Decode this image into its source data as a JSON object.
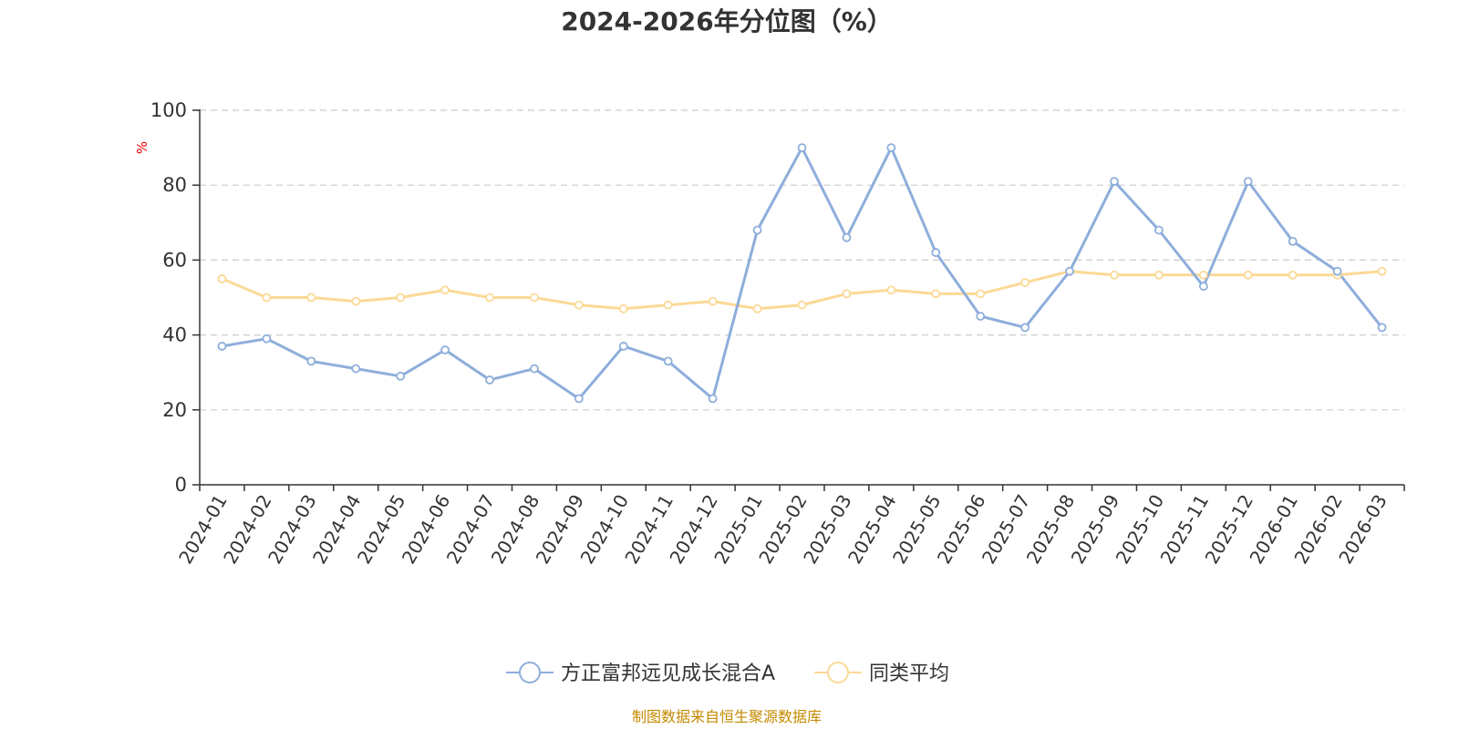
{
  "chart_data": {
    "type": "line",
    "title": "2024-2026年分位图（%）",
    "ylabel": "%",
    "xlabel": "",
    "ylim": [
      0,
      100
    ],
    "yticks": [
      0,
      20,
      40,
      60,
      80,
      100
    ],
    "grid": true,
    "legend_position": "bottom",
    "categories": [
      "2024-01",
      "2024-02",
      "2024-03",
      "2024-04",
      "2024-05",
      "2024-06",
      "2024-07",
      "2024-08",
      "2024-09",
      "2024-10",
      "2024-11",
      "2024-12",
      "2025-01",
      "2025-02",
      "2025-03",
      "2025-04",
      "2025-05",
      "2025-06",
      "2025-07",
      "2025-08",
      "2025-09",
      "2025-10",
      "2025-11",
      "2025-12",
      "2026-01",
      "2026-02",
      "2026-03"
    ],
    "series": [
      {
        "name": "方正富邦远见成长混合A",
        "color": "#8eaedb",
        "values": [
          37,
          39,
          33,
          31,
          29,
          36,
          28,
          31,
          23,
          37,
          33,
          23,
          68,
          90,
          66,
          90,
          62,
          45,
          42,
          57,
          81,
          68,
          53,
          81,
          65,
          57,
          42
        ]
      },
      {
        "name": "同类平均",
        "color": "#fbd996",
        "values": [
          55,
          50,
          50,
          49,
          50,
          52,
          50,
          50,
          48,
          47,
          48,
          49,
          47,
          48,
          51,
          52,
          51,
          51,
          54,
          57,
          56,
          56,
          56,
          56,
          56,
          56,
          57
        ]
      }
    ]
  },
  "colors": {
    "axis": "#333333",
    "grid": "#cccccc",
    "unit_label": "#ee0000",
    "source_text": "#c48a00"
  },
  "source_note": "制图数据来自恒生聚源数据库"
}
